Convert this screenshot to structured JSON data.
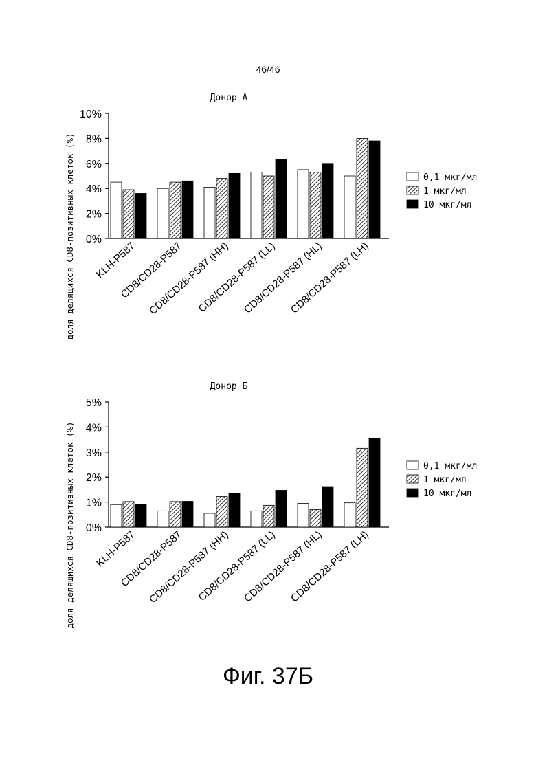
{
  "page": {
    "number": "46/46",
    "caption": "Фиг. 37Б"
  },
  "chart_data": [
    {
      "type": "bar",
      "title": "Донор А",
      "ylabel": "доля делящихся CD8-позитивных клеток (%)",
      "xlabel": "",
      "ylim": [
        0,
        10
      ],
      "yticks": [
        "0%",
        "2%",
        "4%",
        "6%",
        "8%",
        "10%"
      ],
      "categories": [
        "KLH-P587",
        "CD8/CD28-P587",
        "CD8/CD28-P587 (HH)",
        "CD8/CD28-P587 (LL)",
        "CD8/CD28-P587 (HL)",
        "CD8/CD28-P587 (LH)"
      ],
      "series": [
        {
          "name": "0,1 мкг/мл",
          "values": [
            4.5,
            4.0,
            4.1,
            5.3,
            5.5,
            5.0
          ]
        },
        {
          "name": "1 мкг/мл",
          "values": [
            3.9,
            4.5,
            4.8,
            5.0,
            5.3,
            8.0
          ]
        },
        {
          "name": "10 мкг/мл",
          "values": [
            3.6,
            4.6,
            5.2,
            6.3,
            6.0,
            7.8
          ]
        }
      ],
      "legend": "right",
      "grid": false
    },
    {
      "type": "bar",
      "title": "Донор Б",
      "ylabel": "доля делящихся CD8-позитивных клеток (%)",
      "xlabel": "",
      "ylim": [
        0,
        5
      ],
      "yticks": [
        "0%",
        "1%",
        "2%",
        "3%",
        "4%",
        "5%"
      ],
      "categories": [
        "KLH-P587",
        "CD8/CD28-P587",
        "CD8/CD28-P587 (HH)",
        "CD8/CD28-P587 (LL)",
        "CD8/CD28-P587 (HL)",
        "CD8/CD28-P587 (LH)"
      ],
      "series": [
        {
          "name": "0,1 мкг/мл",
          "values": [
            0.9,
            0.65,
            0.55,
            0.65,
            0.95,
            0.97
          ]
        },
        {
          "name": "1 мкг/мл",
          "values": [
            1.02,
            1.02,
            1.22,
            0.87,
            0.7,
            3.15
          ]
        },
        {
          "name": "10 мкг/мл",
          "values": [
            0.92,
            1.03,
            1.35,
            1.47,
            1.62,
            3.55
          ]
        }
      ],
      "legend": "right",
      "grid": false
    }
  ]
}
